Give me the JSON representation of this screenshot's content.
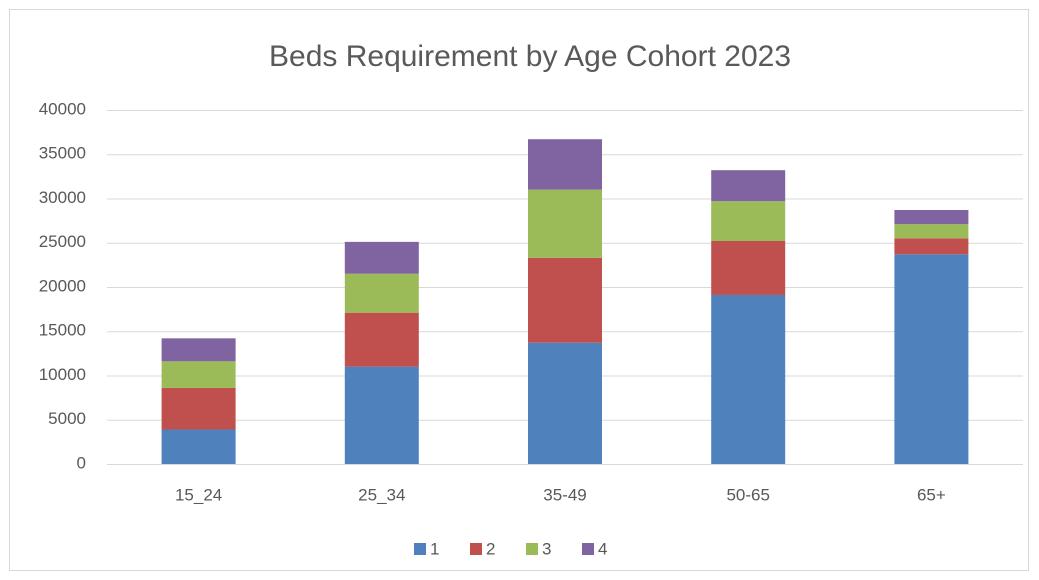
{
  "chart_data": {
    "type": "stacked_bar",
    "title": "Beds Requirement by Age Cohort 2023",
    "categories": [
      "15_24",
      "25_34",
      "35-49",
      "50-65",
      "65+"
    ],
    "series": [
      {
        "name": "1",
        "color": "#4f81bd",
        "values": [
          3900,
          11000,
          13700,
          19100,
          23700
        ]
      },
      {
        "name": "2",
        "color": "#c0504d",
        "values": [
          4700,
          6100,
          9600,
          6100,
          1800
        ]
      },
      {
        "name": "3",
        "color": "#9bbb59",
        "values": [
          3000,
          4400,
          7700,
          4500,
          1600
        ]
      },
      {
        "name": "4",
        "color": "#8064a2",
        "values": [
          2600,
          3600,
          5700,
          3500,
          1600
        ]
      }
    ],
    "ylim": [
      0,
      40000
    ],
    "yticks": [
      0,
      5000,
      10000,
      15000,
      20000,
      25000,
      30000,
      35000,
      40000
    ],
    "grid": true,
    "legend": "bottom"
  }
}
